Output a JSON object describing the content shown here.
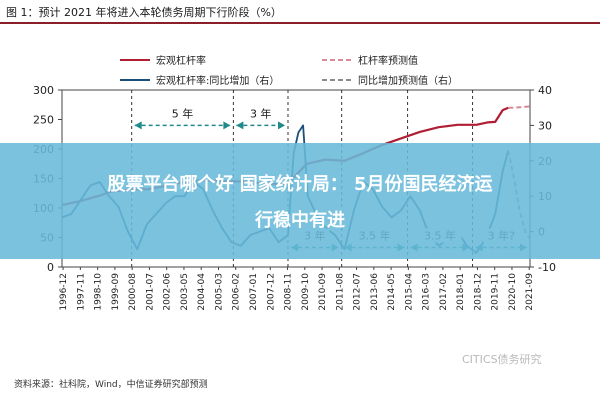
{
  "header": {
    "title": "图 1：预计 2021 年将进入本轮债务周期下行阶段（%）"
  },
  "footer": {
    "source": "资料来源：社科院，Wind，中信证券研究部预测",
    "watermark": "CITICS债务研究"
  },
  "overlay": {
    "line1": "股票平台哪个好 国家统计局： 5月份国民经济运",
    "line2": "行稳中有进"
  },
  "colors": {
    "leverage": "#b01e33",
    "growth": "#1d4f7a",
    "annotation": "#1f8a8a",
    "banner": "#68bada"
  },
  "chart_data": {
    "type": "line",
    "categories": [
      "1996-12",
      "1997-11",
      "1998-10",
      "1999-09",
      "2000-08",
      "2001-07",
      "2002-06",
      "2003-05",
      "2004-04",
      "2005-03",
      "2006-02",
      "2007-01",
      "2007-12",
      "2008-11",
      "2009-10",
      "2010-09",
      "2011-08",
      "2012-07",
      "2013-06",
      "2014-05",
      "2015-04",
      "2016-03",
      "2017-02",
      "2018-01",
      "2018-12",
      "2019-11",
      "2020-10",
      "2021-09"
    ],
    "y_left": {
      "ylim": [
        0,
        300
      ],
      "ticks": [
        0,
        50,
        100,
        150,
        200,
        250,
        300
      ]
    },
    "y_right": {
      "ylim": [
        -10,
        40
      ],
      "ticks": [
        -10,
        0,
        10,
        20,
        30,
        40
      ]
    },
    "legend": {
      "position": "top",
      "items": [
        {
          "label": "宏观杠杆率",
          "style": "solid",
          "color": "#b01e33"
        },
        {
          "label": "杠杆率预测值",
          "style": "dashed",
          "color": "#d98a96"
        },
        {
          "label": "宏观杠杆率:同比增加（右）",
          "style": "solid",
          "color": "#1d4f7a"
        },
        {
          "label": "同比增加预测值（右）",
          "style": "dashed",
          "color": "#8a8a8a"
        }
      ]
    },
    "series": [
      {
        "name": "宏观杠杆率",
        "axis": "left",
        "x": [
          1996.9,
          1997.9,
          1998.9,
          1999.5,
          2000.5,
          2001.5,
          2002.5,
          2003.5,
          2004.5,
          2005.5,
          2006.5,
          2007.5,
          2008.5,
          2008.9,
          2009.9,
          2010.9,
          2011.9,
          2012.9,
          2013.9,
          2014.9,
          2015.9,
          2016.9,
          2017.9,
          2018.9,
          2019.5,
          2019.9,
          2020.3,
          2020.6
        ],
        "y": [
          105,
          112,
          121,
          128,
          131,
          132,
          138,
          145,
          147,
          145,
          145,
          142,
          140,
          142,
          175,
          182,
          180,
          193,
          207,
          218,
          229,
          237,
          241,
          241,
          245,
          246,
          266,
          270
        ]
      },
      {
        "name": "杠杆率预测值",
        "axis": "left",
        "x": [
          2020.6,
          2020.9,
          2021.3,
          2021.75
        ],
        "y": [
          270,
          270,
          271,
          272
        ]
      },
      {
        "name": "宏观杠杆率:同比增加（右）",
        "axis": "right",
        "x": [
          1996.9,
          1997.4,
          1997.9,
          1998.4,
          1998.9,
          1999.4,
          1999.9,
          2000.4,
          2000.9,
          2001.4,
          2001.9,
          2002.4,
          2002.9,
          2003.4,
          2003.9,
          2004.4,
          2004.9,
          2005.4,
          2005.9,
          2006.4,
          2006.9,
          2007.4,
          2007.9,
          2008.4,
          2008.9,
          2009.2,
          2009.45,
          2009.7,
          2009.95,
          2010.4,
          2010.9,
          2011.4,
          2011.9,
          2012.4,
          2012.9,
          2013.4,
          2013.9,
          2014.4,
          2014.9,
          2015.4,
          2015.9,
          2016.4,
          2016.9,
          2017.4,
          2017.9,
          2018.4,
          2018.9,
          2019.4,
          2019.9,
          2020.3,
          2020.6
        ],
        "y": [
          4,
          5,
          9,
          13,
          14,
          10,
          7,
          0,
          -5,
          2,
          5,
          8,
          10,
          10,
          14,
          12,
          6,
          1,
          -3,
          -4,
          -1,
          0,
          1,
          -3,
          -1,
          22,
          28,
          30,
          10,
          5,
          1,
          -1,
          -5,
          6,
          14,
          12,
          7,
          4,
          6,
          10,
          6,
          -1,
          -4,
          -2,
          0,
          -4,
          -6,
          -2,
          5,
          17,
          23
        ]
      },
      {
        "name": "同比增加预测值（右）",
        "axis": "right",
        "x": [
          2020.6,
          2020.9,
          2021.2,
          2021.5,
          2021.75
        ],
        "y": [
          23,
          15,
          6,
          0,
          -2
        ]
      }
    ],
    "period_dividers": [
      2000.6,
      2006.0,
      2008.9,
      2011.75,
      2015.25,
      2018.7
    ],
    "annotations": [
      {
        "label": "5 年",
        "from": 2000.6,
        "to": 2006.0,
        "y": 30,
        "axis": "right",
        "color": "#1f8a8a"
      },
      {
        "label": "3 年",
        "from": 2006.0,
        "to": 2008.9,
        "y": 30,
        "axis": "right",
        "color": "#1f8a8a"
      },
      {
        "label": "3 年",
        "from": 2008.9,
        "to": 2011.75,
        "y": -4.5,
        "axis": "right",
        "color": "#1f8a8a"
      },
      {
        "label": "3.5 年",
        "from": 2011.75,
        "to": 2015.25,
        "y": -4.5,
        "axis": "right",
        "color": "#1f8a8a"
      },
      {
        "label": "3.5 年",
        "from": 2015.25,
        "to": 2018.7,
        "y": -4.5,
        "axis": "right",
        "color": "#1f8a8a"
      },
      {
        "label": "3 年?",
        "from": 2018.7,
        "to": 2021.75,
        "y": -4.5,
        "axis": "right",
        "color": "#1f8a8a"
      }
    ]
  }
}
